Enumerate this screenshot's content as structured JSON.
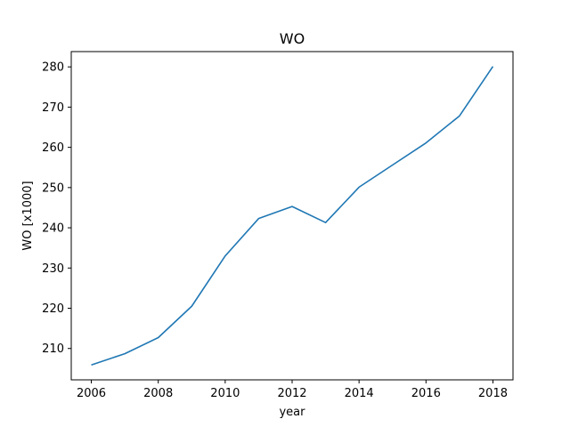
{
  "chart_data": {
    "type": "line",
    "title": "WO",
    "xlabel": "year",
    "ylabel": "WO [x1000]",
    "x": [
      2006,
      2007,
      2008,
      2009,
      2010,
      2011,
      2012,
      2013,
      2014,
      2015,
      2016,
      2017,
      2018
    ],
    "series": [
      {
        "values": [
          205.9,
          208.7,
          212.7,
          220.5,
          233.0,
          242.3,
          245.3,
          241.3,
          250.1,
          255.6,
          261.1,
          267.8,
          280.1
        ],
        "color": "#1f77b4"
      }
    ],
    "xlim": [
      2005.4,
      2018.6
    ],
    "ylim": [
      202.2,
      283.8
    ],
    "xticks": [
      2006,
      2008,
      2010,
      2012,
      2014,
      2016,
      2018
    ],
    "yticks": [
      210,
      220,
      230,
      240,
      250,
      260,
      270,
      280
    ],
    "grid": false
  }
}
